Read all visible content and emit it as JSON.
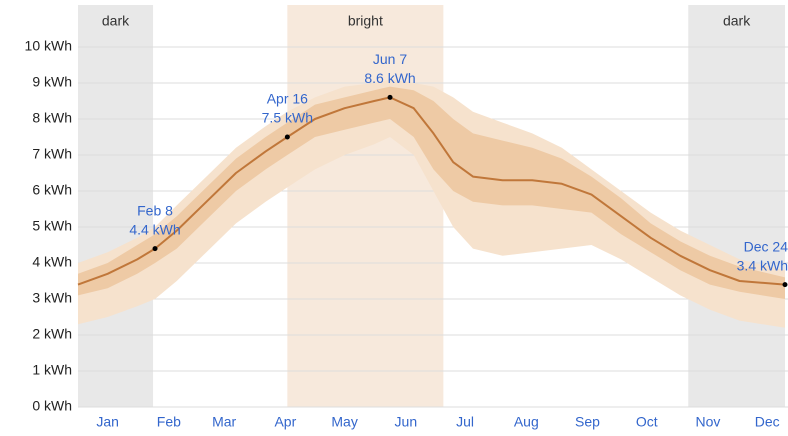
{
  "chart_data": {
    "type": "line",
    "x": [
      0,
      15,
      30,
      39,
      50,
      65,
      80,
      95,
      106,
      120,
      135,
      150,
      158,
      170,
      180,
      190,
      200,
      215,
      230,
      245,
      260,
      275,
      290,
      305,
      320,
      335,
      358
    ],
    "xlim": [
      0,
      358
    ],
    "xticks": [
      {
        "value": 15,
        "label": "Jan"
      },
      {
        "value": 46,
        "label": "Feb"
      },
      {
        "value": 74,
        "label": "Mar"
      },
      {
        "value": 105,
        "label": "Apr"
      },
      {
        "value": 135,
        "label": "May"
      },
      {
        "value": 166,
        "label": "Jun"
      },
      {
        "value": 196,
        "label": "Jul"
      },
      {
        "value": 227,
        "label": "Aug"
      },
      {
        "value": 258,
        "label": "Sep"
      },
      {
        "value": 288,
        "label": "Oct"
      },
      {
        "value": 319,
        "label": "Nov"
      },
      {
        "value": 349,
        "label": "Dec"
      }
    ],
    "ylim": [
      0,
      10
    ],
    "yticks": [
      {
        "value": 0,
        "label": "0 kWh"
      },
      {
        "value": 1,
        "label": "1 kWh"
      },
      {
        "value": 2,
        "label": "2 kWh"
      },
      {
        "value": 3,
        "label": "3 kWh"
      },
      {
        "value": 4,
        "label": "4 kWh"
      },
      {
        "value": 5,
        "label": "5 kWh"
      },
      {
        "value": 6,
        "label": "6 kWh"
      },
      {
        "value": 7,
        "label": "7 kWh"
      },
      {
        "value": 8,
        "label": "8 kWh"
      },
      {
        "value": 9,
        "label": "9 kWh"
      },
      {
        "value": 10,
        "label": "10 kWh"
      }
    ],
    "grid": true,
    "bands": [
      {
        "label": "dark",
        "from": 0,
        "to": 38,
        "color": "#e8e8e8"
      },
      {
        "label": "bright",
        "from": 106,
        "to": 185,
        "color": "#f7e9dc"
      },
      {
        "label": "dark",
        "from": 309,
        "to": 358,
        "color": "#e8e8e8"
      }
    ],
    "ranges": [
      {
        "color": "#f6e2cd",
        "low": [
          2.3,
          2.5,
          2.8,
          3.0,
          3.5,
          4.3,
          5.1,
          5.7,
          6.1,
          6.6,
          7.0,
          7.3,
          7.5,
          7.0,
          6.0,
          5.0,
          4.4,
          4.2,
          4.3,
          4.4,
          4.5,
          4.1,
          3.6,
          3.1,
          2.7,
          2.4,
          2.2
        ],
        "high": [
          4.0,
          4.3,
          4.7,
          5.0,
          5.6,
          6.4,
          7.2,
          7.8,
          8.2,
          8.6,
          8.9,
          9.0,
          9.1,
          9.0,
          8.9,
          8.6,
          8.2,
          7.9,
          7.6,
          7.2,
          6.6,
          6.0,
          5.4,
          4.9,
          4.5,
          4.1,
          3.8
        ]
      },
      {
        "color": "#eecaa5",
        "low": [
          3.1,
          3.3,
          3.7,
          4.0,
          4.4,
          5.2,
          6.0,
          6.6,
          7.0,
          7.5,
          7.7,
          7.9,
          8.0,
          7.5,
          6.6,
          6.0,
          5.7,
          5.6,
          5.6,
          5.5,
          5.4,
          4.8,
          4.3,
          3.8,
          3.4,
          3.2,
          3.0
        ],
        "high": [
          3.7,
          4.0,
          4.5,
          4.8,
          5.3,
          6.1,
          6.9,
          7.5,
          7.9,
          8.4,
          8.6,
          8.8,
          8.9,
          8.8,
          8.5,
          8.0,
          7.6,
          7.4,
          7.2,
          6.9,
          6.4,
          5.8,
          5.1,
          4.6,
          4.2,
          3.9,
          3.6
        ]
      }
    ],
    "series": [
      {
        "color": "#c0773a",
        "values": [
          3.4,
          3.7,
          4.1,
          4.4,
          4.9,
          5.7,
          6.5,
          7.1,
          7.5,
          8.0,
          8.3,
          8.5,
          8.6,
          8.3,
          7.6,
          6.8,
          6.4,
          6.3,
          6.3,
          6.2,
          5.9,
          5.3,
          4.7,
          4.2,
          3.8,
          3.5,
          3.4
        ]
      }
    ],
    "annotations": [
      {
        "x": 39,
        "date": "Feb 8",
        "value": 4.4,
        "value_label": "4.4 kWh"
      },
      {
        "x": 106,
        "date": "Apr 16",
        "value": 7.5,
        "value_label": "7.5 kWh"
      },
      {
        "x": 158,
        "date": "Jun 7",
        "value": 8.6,
        "value_label": "8.6 kWh"
      },
      {
        "x": 358,
        "date": "Dec 24",
        "value": 3.4,
        "value_label": "3.4 kWh"
      }
    ]
  }
}
